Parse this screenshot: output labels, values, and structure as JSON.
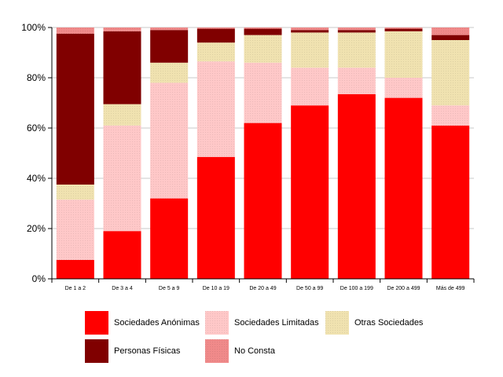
{
  "chart_data": {
    "type": "bar",
    "stacked": true,
    "percent": true,
    "categories": [
      "De 1 a 2",
      "De 3 a 4",
      "De 5 a 9",
      "De 10 a 19",
      "De 20 a 49",
      "De 50 a 99",
      "De 100 a 199",
      "De 200 a 499",
      "Más de 499"
    ],
    "series": [
      {
        "name": "Sociedades Anónimas",
        "color": "#ff0000",
        "values": [
          7.5,
          19,
          32,
          48.5,
          62,
          69,
          73.5,
          72,
          61
        ]
      },
      {
        "name": "Sociedades Limitadas",
        "color": "#ffc8c8",
        "values": [
          24,
          42,
          46,
          38,
          24,
          15,
          10.5,
          8,
          8
        ]
      },
      {
        "name": "Otras Sociedades",
        "color": "#f0e2b0",
        "values": [
          6,
          8.5,
          8,
          7.5,
          11,
          14,
          14,
          18.5,
          26
        ]
      },
      {
        "name": "Personas Físicas",
        "color": "#800000",
        "values": [
          60,
          29,
          13,
          5.5,
          2.5,
          1,
          1,
          1,
          2
        ]
      },
      {
        "name": "No Consta",
        "color": "#f08a8a",
        "values": [
          2.5,
          1.5,
          1,
          0.5,
          0.5,
          1,
          1,
          0.5,
          3
        ]
      }
    ],
    "yticks": [
      "0%",
      "20%",
      "40%",
      "60%",
      "80%",
      "100%"
    ],
    "ylim": [
      0,
      100
    ],
    "grid": true,
    "legend": "bottom"
  }
}
